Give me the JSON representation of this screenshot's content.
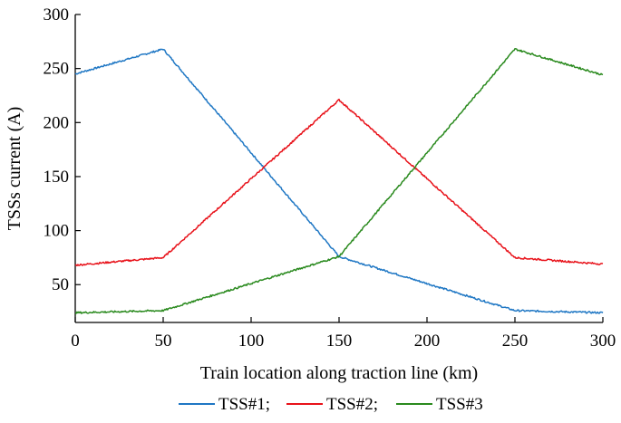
{
  "chart_data": {
    "type": "line",
    "title": "",
    "xlabel": "Train location along traction line (km)",
    "ylabel": "TSSs current (A)",
    "xlim": [
      0,
      300
    ],
    "ylim": [
      15,
      300
    ],
    "xticks": [
      0,
      50,
      100,
      150,
      200,
      250,
      300
    ],
    "yticks": [
      50,
      100,
      150,
      200,
      250,
      300
    ],
    "grid": false,
    "legend_position": "bottom",
    "series": [
      {
        "name": "TSS#1;",
        "color": "#1f77c4",
        "x": [
          0,
          50,
          150,
          250,
          300
        ],
        "y": [
          245,
          268,
          76,
          26,
          24
        ]
      },
      {
        "name": "TSS#2;",
        "color": "#e8121a",
        "x": [
          0,
          50,
          150,
          250,
          300
        ],
        "y": [
          68,
          75,
          221,
          75,
          69
        ]
      },
      {
        "name": "TSS#3",
        "color": "#2a8a1e",
        "x": [
          0,
          50,
          150,
          250,
          300
        ],
        "y": [
          24,
          26,
          76,
          268,
          244
        ]
      }
    ]
  }
}
